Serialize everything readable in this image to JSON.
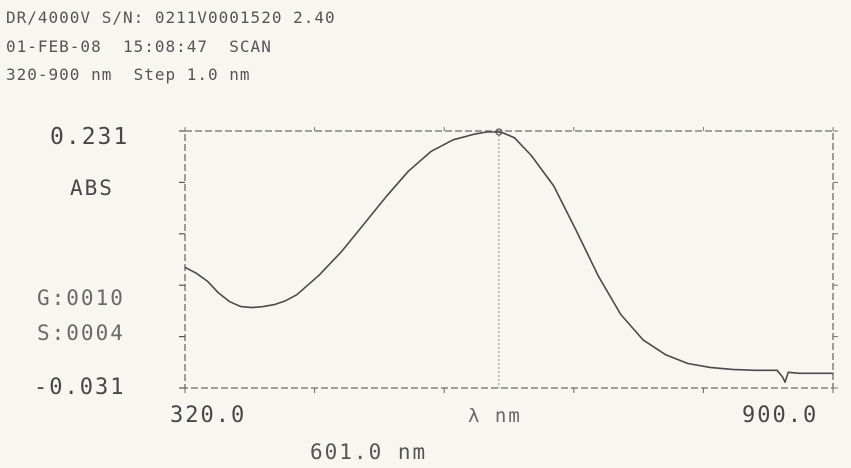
{
  "header": {
    "line1": "DR/4000V S/N: 0211V0001520 2.40",
    "line2": "01-FEB-08  15:08:47  SCAN",
    "line3": "320-900 nm  Step 1.0 nm"
  },
  "readouts": {
    "g": "G:0010",
    "s": "S:0004",
    "cursor": "601.0 nm"
  },
  "chart_data": {
    "type": "line",
    "title": "",
    "xlabel": "λ nm",
    "ylabel": "ABS",
    "xlim": [
      320.0,
      900.0
    ],
    "ylim": [
      -0.031,
      0.231
    ],
    "tick_labels": {
      "x_min": "320.0",
      "x_max": "900.0",
      "y_min": "-0.031",
      "y_max": "0.231"
    },
    "grid": false,
    "cursor_x": 601.0,
    "series": [
      {
        "x": [
          320,
          330,
          340,
          350,
          360,
          370,
          380,
          390,
          400,
          410,
          420,
          440,
          460,
          480,
          500,
          520,
          540,
          560,
          580,
          590,
          600,
          605,
          615,
          630,
          650,
          670,
          690,
          710,
          730,
          750,
          770,
          790,
          810,
          830,
          850,
          855,
          857,
          860,
          870,
          880,
          900
        ],
        "values": [
          0.092,
          0.086,
          0.078,
          0.066,
          0.057,
          0.052,
          0.051,
          0.052,
          0.054,
          0.058,
          0.064,
          0.084,
          0.108,
          0.136,
          0.164,
          0.19,
          0.21,
          0.222,
          0.228,
          0.23,
          0.23,
          0.229,
          0.224,
          0.206,
          0.175,
          0.13,
          0.083,
          0.044,
          0.018,
          0.003,
          -0.006,
          -0.01,
          -0.012,
          -0.013,
          -0.013,
          -0.02,
          -0.025,
          -0.015,
          -0.016,
          -0.016,
          -0.016
        ]
      }
    ]
  }
}
